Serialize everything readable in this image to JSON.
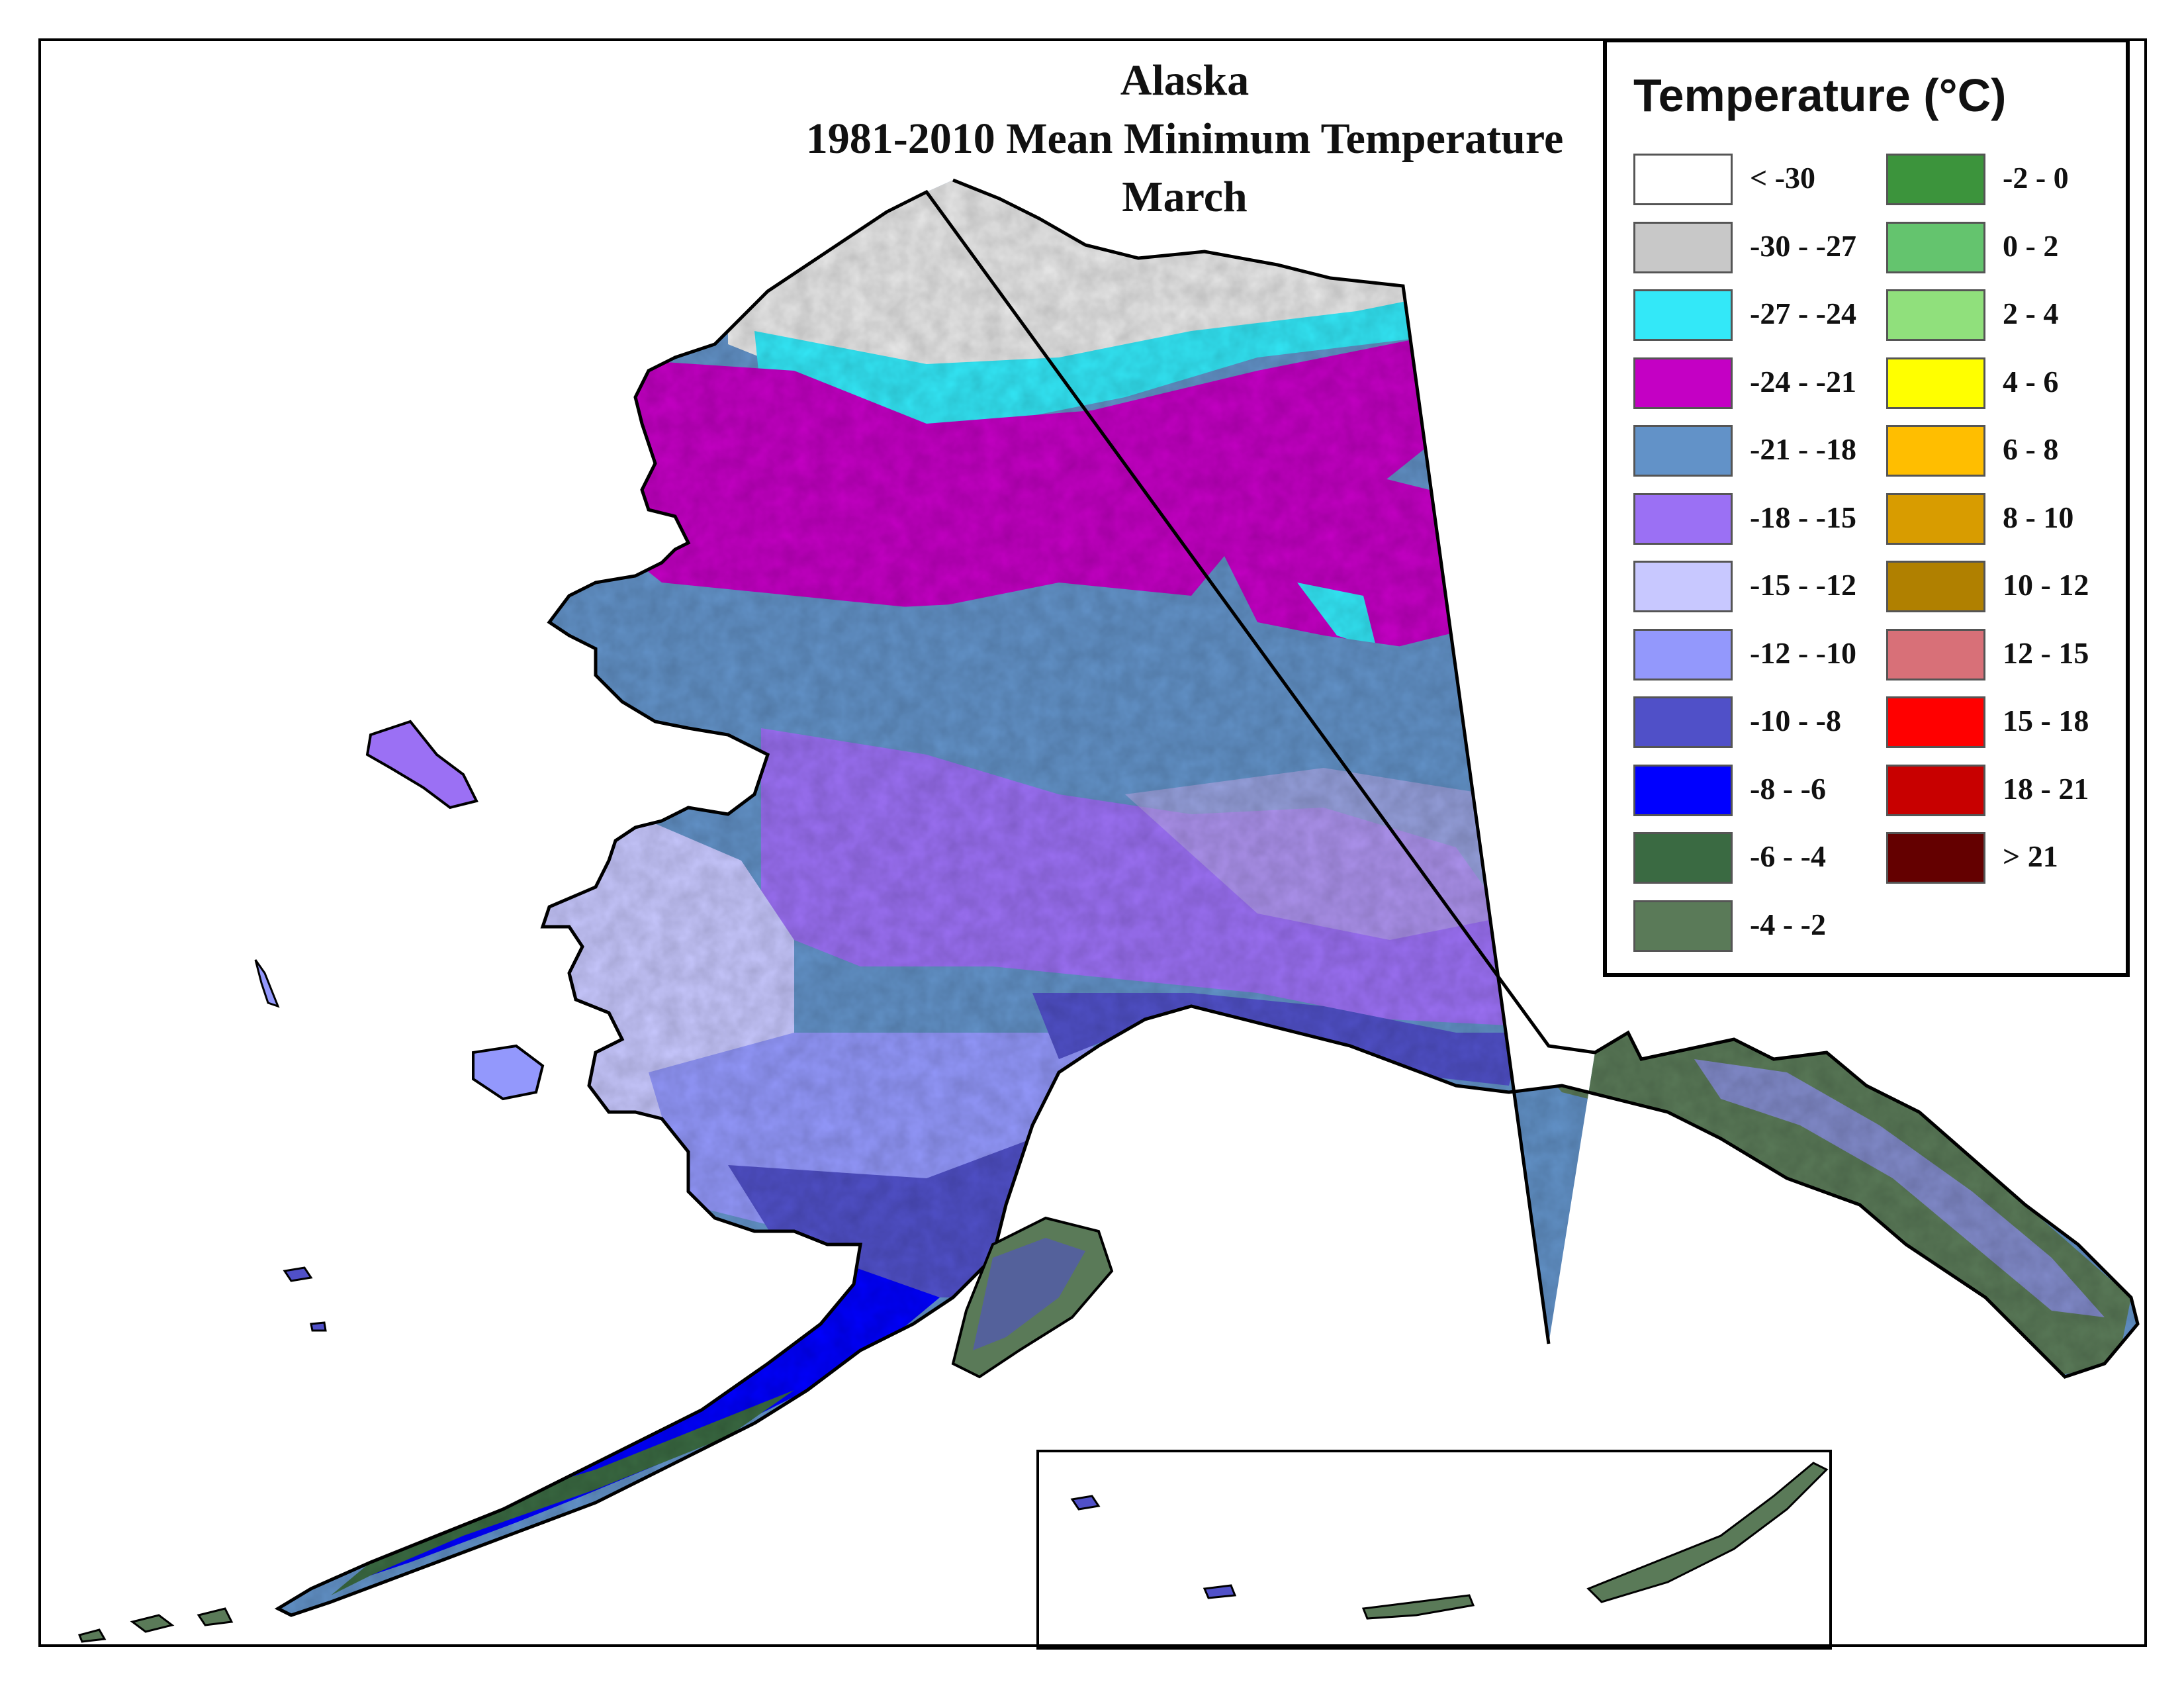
{
  "title": {
    "line1": "Alaska",
    "line2": "1981-2010 Mean Minimum Temperature",
    "line3": "March"
  },
  "legend": {
    "title": "Temperature (°C)",
    "left_items": [
      {
        "label": "< -30",
        "color": "#ffffff"
      },
      {
        "label": "-30 - -27",
        "color": "#c8c8c8"
      },
      {
        "label": "-27 - -24",
        "color": "#33e8f8"
      },
      {
        "label": "-24 - -21",
        "color": "#c400c4"
      },
      {
        "label": "-21 - -18",
        "color": "#6292c8"
      },
      {
        "label": "-18 - -15",
        "color": "#9b70f4"
      },
      {
        "label": "-15 - -12",
        "color": "#c8c8ff"
      },
      {
        "label": "-12 - -10",
        "color": "#9398fc"
      },
      {
        "label": "-10 - -8",
        "color": "#5050c8"
      },
      {
        "label": "-8 - -6",
        "color": "#0000ff"
      },
      {
        "label": "-6 - -4",
        "color": "#3a6a42"
      },
      {
        "label": "-4 - -2",
        "color": "#5a7a58"
      }
    ],
    "right_items": [
      {
        "label": "-2 - 0",
        "color": "#3c943c"
      },
      {
        "label": "0 - 2",
        "color": "#64c46e"
      },
      {
        "label": "2 - 4",
        "color": "#90e07c"
      },
      {
        "label": "4 - 6",
        "color": "#ffff00"
      },
      {
        "label": "6 - 8",
        "color": "#ffbe00"
      },
      {
        "label": "8 - 10",
        "color": "#d89c00"
      },
      {
        "label": "10 - 12",
        "color": "#b08000"
      },
      {
        "label": "12 - 15",
        "color": "#d87078"
      },
      {
        "label": "15 - 18",
        "color": "#ff0000"
      },
      {
        "label": "18 - 21",
        "color": "#c80000"
      },
      {
        "label": "> 21",
        "color": "#640000"
      }
    ]
  }
}
